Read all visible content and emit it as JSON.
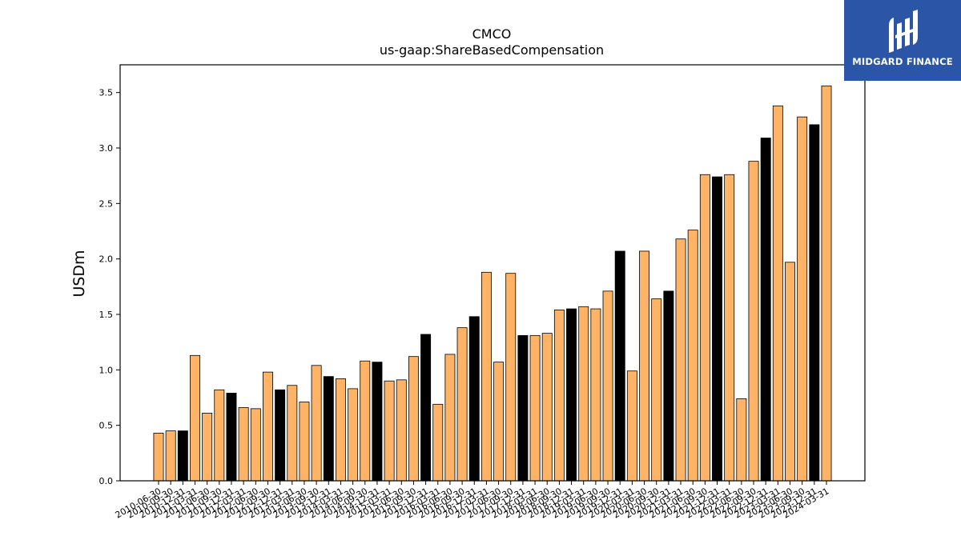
{
  "chart_data": {
    "type": "bar",
    "title": "CMCO",
    "subtitle": "us-gaap:ShareBasedCompensation",
    "ylabel": "USDm",
    "xlabel": "",
    "ylim": [
      0,
      3.75
    ],
    "yticks": [
      "0.0",
      "0.5",
      "1.0",
      "1.5",
      "2.0",
      "2.5",
      "3.0",
      "3.5"
    ],
    "grid": false,
    "colors": {
      "default": "#ffb366",
      "highlight": "#000000",
      "edge": "#000000"
    },
    "categories": [
      "2010-06-30",
      "2010-09-30",
      "2010-12-31",
      "2011-03-31",
      "2011-06-30",
      "2011-09-30",
      "2011-12-31",
      "2012-03-31",
      "2012-06-30",
      "2012-09-30",
      "2012-12-31",
      "2013-03-31",
      "2013-06-30",
      "2013-09-30",
      "2013-12-31",
      "2014-03-31",
      "2014-06-30",
      "2014-09-30",
      "2014-12-31",
      "2015-03-31",
      "2015-06-30",
      "2015-09-30",
      "2015-12-31",
      "2016-03-31",
      "2016-06-30",
      "2016-09-30",
      "2016-12-31",
      "2017-03-31",
      "2017-06-30",
      "2017-09-30",
      "2017-12-31",
      "2018-03-31",
      "2018-06-30",
      "2018-09-30",
      "2018-12-31",
      "2019-03-31",
      "2019-06-30",
      "2019-09-30",
      "2019-12-31",
      "2020-03-31",
      "2020-06-30",
      "2020-09-30",
      "2020-12-31",
      "2021-03-31",
      "2021-06-30",
      "2021-09-30",
      "2021-12-31",
      "2022-03-31",
      "2022-06-30",
      "2022-09-30",
      "2022-12-31",
      "2023-03-31",
      "2023-06-30",
      "2023-09-30",
      "2023-12-31",
      "2024-03-31"
    ],
    "values": [
      0.43,
      0.45,
      0.45,
      1.13,
      0.61,
      0.82,
      0.79,
      0.66,
      0.65,
      0.98,
      0.82,
      0.86,
      0.71,
      1.04,
      0.94,
      0.92,
      0.83,
      1.08,
      1.07,
      0.9,
      0.91,
      1.12,
      1.32,
      0.69,
      1.14,
      1.38,
      1.48,
      1.88,
      1.07,
      1.87,
      1.31,
      1.31,
      1.33,
      1.54,
      1.55,
      1.57,
      1.55,
      1.71,
      2.07,
      0.99,
      2.07,
      1.64,
      1.71,
      2.18,
      2.26,
      2.76,
      2.74,
      2.76,
      0.74,
      2.88,
      3.09,
      3.38,
      1.97,
      3.28,
      3.21,
      3.56
    ],
    "highlight": [
      false,
      false,
      true,
      false,
      false,
      false,
      true,
      false,
      false,
      false,
      true,
      false,
      false,
      false,
      true,
      false,
      false,
      false,
      true,
      false,
      false,
      false,
      true,
      false,
      false,
      false,
      true,
      false,
      false,
      false,
      true,
      false,
      false,
      false,
      true,
      false,
      false,
      false,
      true,
      false,
      false,
      false,
      true,
      false,
      false,
      false,
      true,
      false,
      false,
      false,
      true,
      false,
      false,
      false,
      true,
      false
    ]
  },
  "logo": {
    "text": "MIDGARD FINANCE"
  }
}
